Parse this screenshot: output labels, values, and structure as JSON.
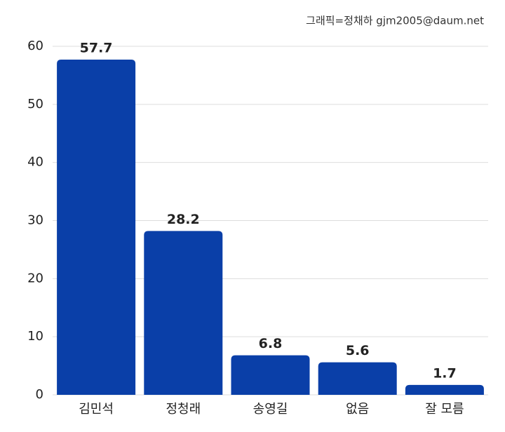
{
  "chart_data": {
    "type": "bar",
    "credit": "그래픽=정채하 gjm2005@daum.net",
    "categories": [
      "김민석",
      "정청래",
      "송영길",
      "없음",
      "잘 모름"
    ],
    "values": [
      57.7,
      28.2,
      6.8,
      5.6,
      1.7
    ],
    "color": "#0a3fa8",
    "ylim": [
      0,
      60
    ],
    "yticks": [
      0,
      10,
      20,
      30,
      40,
      50,
      60
    ],
    "grid": true
  }
}
